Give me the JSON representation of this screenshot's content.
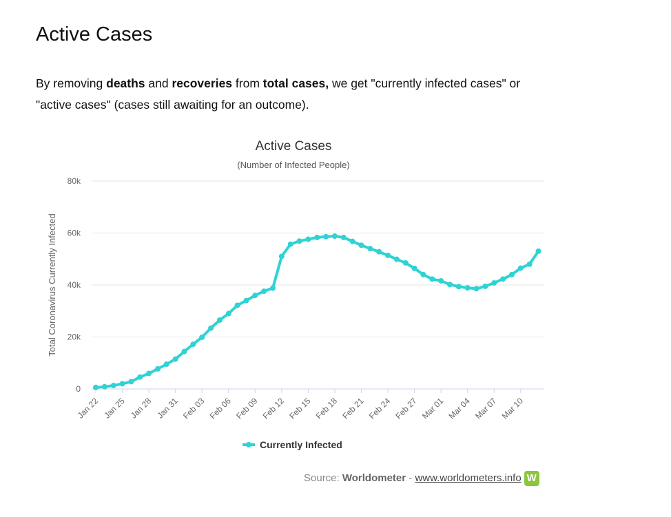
{
  "heading": "Active Cases",
  "intro": [
    "By removing ",
    "deaths",
    " and ",
    "recoveries",
    " from ",
    "total cases,",
    " we get \"currently infected cases\" or \"active cases\" (cases still awaiting for an outcome)."
  ],
  "source": {
    "prefix": "Source: ",
    "name": "Worldometer",
    "separator": " - ",
    "link": "www.worldometers.info"
  },
  "chart_data": {
    "type": "line",
    "title": "Active Cases",
    "subtitle": "(Number of Infected People)",
    "y_label": "Total Coronavirus Currently Infected",
    "categories": [
      "Jan 22",
      null,
      null,
      "Jan 25",
      null,
      null,
      "Jan 28",
      null,
      null,
      "Jan 31",
      null,
      null,
      "Feb 03",
      null,
      null,
      "Feb 06",
      null,
      null,
      "Feb 09",
      null,
      null,
      "Feb 12",
      null,
      null,
      "Feb 15",
      null,
      null,
      "Feb 18",
      null,
      null,
      "Feb 21",
      null,
      null,
      "Feb 24",
      null,
      null,
      "Feb 27",
      null,
      null,
      "Mar 01",
      null,
      null,
      "Mar 04",
      null,
      null,
      "Mar 07",
      null,
      null,
      "Mar 10",
      null,
      null
    ],
    "series": [
      {
        "name": "Currently Infected",
        "color": "#2fd3d3",
        "values": [
          580,
          845,
          1320,
          2010,
          2800,
          4580,
          5970,
          7710,
          9540,
          11500,
          14400,
          17200,
          19900,
          23400,
          26500,
          29000,
          32200,
          34000,
          36000,
          37600,
          38800,
          51000,
          55700,
          56900,
          57600,
          58300,
          58600,
          58800,
          58300,
          56800,
          55300,
          54000,
          52800,
          51400,
          49900,
          48500,
          46400,
          44000,
          42300,
          41600,
          40200,
          39400,
          38900,
          38600,
          39500,
          40800,
          42300,
          44000,
          46500,
          48000,
          53000
        ]
      }
    ],
    "ylim": [
      0,
      80000
    ],
    "yticks": [
      0,
      {
        "value": 20000,
        "label": "20k"
      },
      {
        "value": 40000,
        "label": "40k"
      },
      {
        "value": 60000,
        "label": "60k"
      },
      {
        "value": 80000,
        "label": "80k"
      }
    ],
    "grid": true,
    "legend": "bottom"
  }
}
